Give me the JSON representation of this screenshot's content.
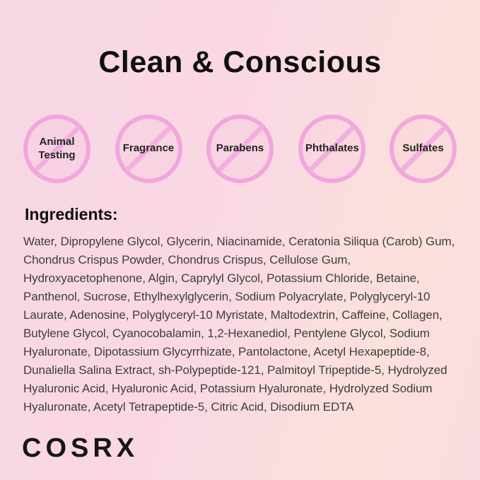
{
  "title": "Clean & Conscious",
  "free_from": {
    "items": [
      "Animal Testing",
      "Fragrance",
      "Parabens",
      "Phthalates",
      "Sulfates"
    ]
  },
  "ingredients": {
    "heading": "Ingredients:",
    "text": "Water, Dipropylene Glycol, Glycerin, Niacinamide, Ceratonia Siliqua (Carob) Gum, Chondrus Crispus Powder, Chondrus Crispus, Cellulose Gum, Hydroxyacetophenone, Algin, Caprylyl Glycol, Potassium Chloride, Betaine, Panthenol, Sucrose, Ethylhexylglycerin, Sodium Polyacrylate, Polyglyceryl-10 Laurate, Adenosine, Polyglyceryl-10 Myristate, Maltodextrin, Caffeine, Collagen, Butylene Glycol, Cyanocobalamin, 1,2-Hexanediol, Pentylene Glycol, Sodium Hyaluronate, Dipotassium Glycyrrhizate, Pantolactone, Acetyl Hexapeptide-8, Dunaliella Salina Extract, sh-Polypeptide-121, Palmitoyl Tripeptide-5, Hydrolyzed Hyaluronic Acid, Hyaluronic Acid, Potassium Hyaluronate, Hydrolyzed Sodium Hyaluronate, Acetyl Tetrapeptide-5, Citric Acid, Disodium EDTA"
  },
  "brand": {
    "logo_text": "COSRX"
  },
  "colors": {
    "background_left_pink": "#f8d7e5",
    "background_right_peach": "#fce0dc",
    "circle_ring_pink": "#f1a6dc",
    "slash_pink": "#f3aee0",
    "title_text": "#0f0f0f",
    "body_text": "#3e3e3e"
  }
}
